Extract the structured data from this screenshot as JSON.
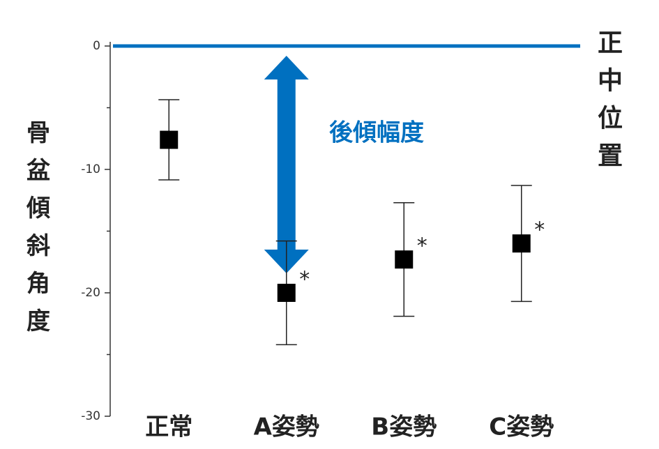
{
  "chart_data": {
    "type": "errorbar",
    "y_label": "骨盆傾斜角度",
    "categories": [
      "正常",
      "A姿勢",
      "B姿勢",
      "C姿勢"
    ],
    "values": [
      -7.6,
      -20.0,
      -17.3,
      -16.0
    ],
    "errors": [
      3.25,
      4.2,
      4.6,
      4.7
    ],
    "significance": [
      null,
      "*",
      "*",
      "*"
    ],
    "color": "#000000",
    "ylim": [
      -30,
      0
    ],
    "yticks": [
      -30,
      -20,
      -10,
      0
    ],
    "yminor_ticks": [
      -25,
      -15,
      -5
    ],
    "reference_line": {
      "value": 0,
      "label": "正中位置",
      "color": "#0070c0"
    },
    "annotation": "後傾幅度"
  }
}
